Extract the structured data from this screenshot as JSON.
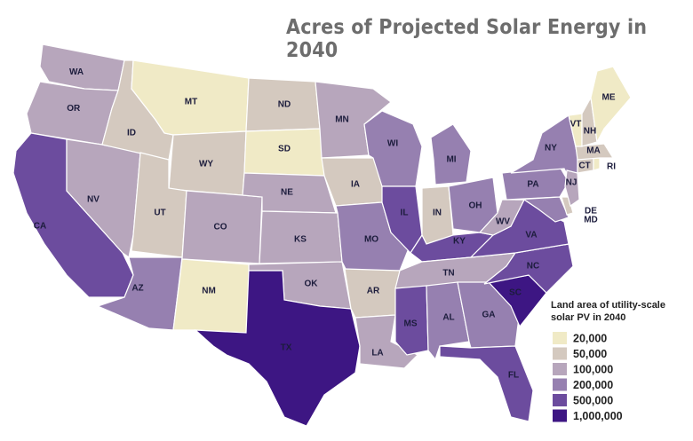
{
  "title": "Acres of Projected Solar Energy in 2040",
  "legend": {
    "title": "Land area of utility-scale solar PV in 2040",
    "items": [
      {
        "label": "20,000",
        "color": "#f0eac6"
      },
      {
        "label": "50,000",
        "color": "#d4c9bf"
      },
      {
        "label": "100,000",
        "color": "#b7a6bc"
      },
      {
        "label": "200,000",
        "color": "#9680b0"
      },
      {
        "label": "500,000",
        "color": "#6c4c9e"
      },
      {
        "label": "1,000,000",
        "color": "#3d1683"
      }
    ]
  },
  "states": [
    {
      "label": "WA",
      "color": "#b7a6bc"
    },
    {
      "label": "OR",
      "color": "#b7a6bc"
    },
    {
      "label": "CA",
      "color": "#6c4c9e"
    },
    {
      "label": "NV",
      "color": "#b7a6bc"
    },
    {
      "label": "ID",
      "color": "#d4c9bf"
    },
    {
      "label": "MT",
      "color": "#f0eac6"
    },
    {
      "label": "WY",
      "color": "#d4c9bf"
    },
    {
      "label": "UT",
      "color": "#d4c9bf"
    },
    {
      "label": "AZ",
      "color": "#9680b0"
    },
    {
      "label": "CO",
      "color": "#b7a6bc"
    },
    {
      "label": "NM",
      "color": "#f0eac6"
    },
    {
      "label": "ND",
      "color": "#d4c9bf"
    },
    {
      "label": "SD",
      "color": "#f0eac6"
    },
    {
      "label": "NE",
      "color": "#b7a6bc"
    },
    {
      "label": "KS",
      "color": "#b7a6bc"
    },
    {
      "label": "OK",
      "color": "#b7a6bc"
    },
    {
      "label": "TX",
      "color": "#3d1683"
    },
    {
      "label": "MN",
      "color": "#b7a6bc"
    },
    {
      "label": "IA",
      "color": "#d4c9bf"
    },
    {
      "label": "MO",
      "color": "#9680b0"
    },
    {
      "label": "AR",
      "color": "#d4c9bf"
    },
    {
      "label": "LA",
      "color": "#b7a6bc"
    },
    {
      "label": "WI",
      "color": "#9680b0"
    },
    {
      "label": "IL",
      "color": "#6c4c9e"
    },
    {
      "label": "MI",
      "color": "#9680b0"
    },
    {
      "label": "IN",
      "color": "#d4c9bf"
    },
    {
      "label": "OH",
      "color": "#9680b0"
    },
    {
      "label": "KY",
      "color": "#6c4c9e"
    },
    {
      "label": "TN",
      "color": "#b7a6bc"
    },
    {
      "label": "MS",
      "color": "#6c4c9e"
    },
    {
      "label": "AL",
      "color": "#9680b0"
    },
    {
      "label": "GA",
      "color": "#9680b0"
    },
    {
      "label": "FL",
      "color": "#6c4c9e"
    },
    {
      "label": "SC",
      "color": "#3d1683"
    },
    {
      "label": "NC",
      "color": "#6c4c9e"
    },
    {
      "label": "VA",
      "color": "#6c4c9e"
    },
    {
      "label": "WV",
      "color": "#b7a6bc"
    },
    {
      "label": "PA",
      "color": "#9680b0"
    },
    {
      "label": "NY",
      "color": "#9680b0"
    },
    {
      "label": "MD",
      "color": "#9680b0"
    },
    {
      "label": "DE",
      "color": "#d4c9bf"
    },
    {
      "label": "NJ",
      "color": "#b7a6bc"
    },
    {
      "label": "CT",
      "color": "#d4c9bf"
    },
    {
      "label": "RI",
      "color": "#f0eac6"
    },
    {
      "label": "MA",
      "color": "#d4c9bf"
    },
    {
      "label": "VT",
      "color": "#f0eac6"
    },
    {
      "label": "NH",
      "color": "#d4c9bf"
    },
    {
      "label": "ME",
      "color": "#f0eac6"
    }
  ]
}
